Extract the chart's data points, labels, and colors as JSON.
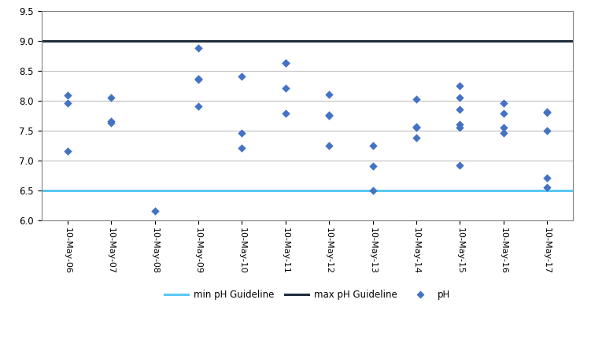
{
  "x_labels": [
    "10-May-06",
    "10-May-07",
    "10-May-08",
    "10-May-09",
    "10-May-10",
    "10-May-11",
    "10-May-12",
    "10-May-13",
    "10-May-14",
    "10-May-15",
    "10-May-16",
    "10-May-17"
  ],
  "x_positions": [
    0,
    1,
    2,
    3,
    4,
    5,
    6,
    7,
    8,
    9,
    10,
    11
  ],
  "ph_data": [
    [
      0,
      7.15
    ],
    [
      0,
      8.08
    ],
    [
      0,
      7.95
    ],
    [
      1,
      8.05
    ],
    [
      1,
      7.65
    ],
    [
      1,
      7.63
    ],
    [
      2,
      6.15
    ],
    [
      3,
      8.35
    ],
    [
      3,
      8.36
    ],
    [
      3,
      7.9
    ],
    [
      3,
      8.88
    ],
    [
      4,
      7.45
    ],
    [
      4,
      7.2
    ],
    [
      4,
      8.4
    ],
    [
      5,
      8.62
    ],
    [
      5,
      8.63
    ],
    [
      5,
      8.2
    ],
    [
      5,
      7.78
    ],
    [
      6,
      8.1
    ],
    [
      6,
      7.75
    ],
    [
      6,
      7.76
    ],
    [
      6,
      7.25
    ],
    [
      7,
      6.5
    ],
    [
      7,
      6.9
    ],
    [
      7,
      7.25
    ],
    [
      8,
      8.02
    ],
    [
      8,
      7.55
    ],
    [
      8,
      7.56
    ],
    [
      8,
      7.38
    ],
    [
      9,
      8.25
    ],
    [
      9,
      8.05
    ],
    [
      9,
      7.85
    ],
    [
      9,
      7.6
    ],
    [
      9,
      7.55
    ],
    [
      9,
      6.92
    ],
    [
      10,
      7.95
    ],
    [
      10,
      7.78
    ],
    [
      10,
      7.55
    ],
    [
      10,
      7.45
    ],
    [
      11,
      7.8
    ],
    [
      11,
      7.81
    ],
    [
      11,
      6.7
    ],
    [
      11,
      6.55
    ],
    [
      11,
      7.5
    ]
  ],
  "min_ph": 6.5,
  "max_ph": 9.0,
  "ylim": [
    6.0,
    9.5
  ],
  "yticks": [
    6.0,
    6.5,
    7.0,
    7.5,
    8.0,
    8.5,
    9.0,
    9.5
  ],
  "min_line_color": "#5BC8F5",
  "max_line_color": "#1F2D3D",
  "point_color": "#4472C4",
  "background_color": "#FFFFFF",
  "grid_color": "#C0C0C0",
  "spine_color": "#808080",
  "legend_labels": [
    "min pH Guideline",
    "max pH Guideline",
    "pH"
  ],
  "xlim": [
    -0.6,
    11.6
  ]
}
